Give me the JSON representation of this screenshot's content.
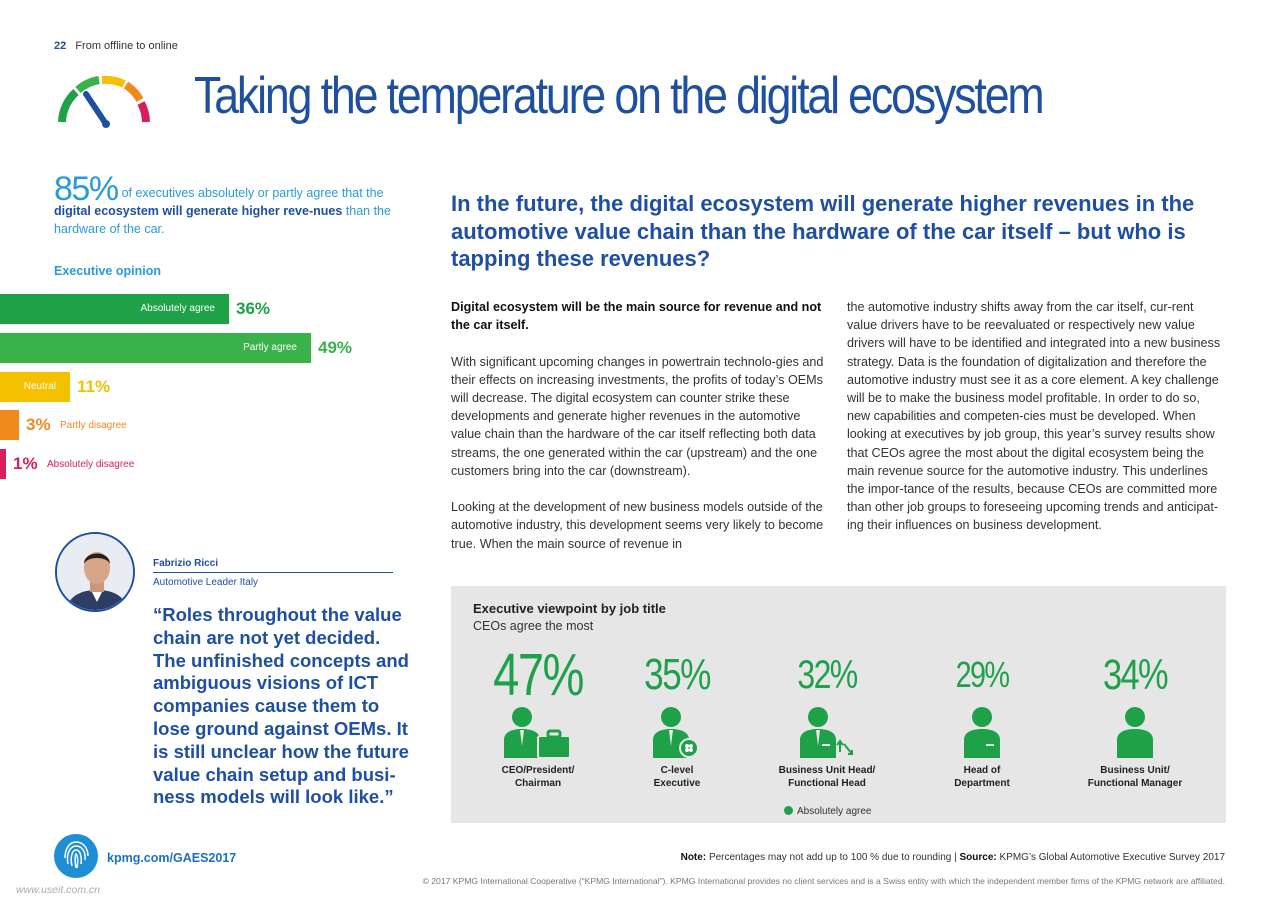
{
  "header": {
    "page_number": "22",
    "section": "From offline to online"
  },
  "title": "Taking the temperature on the digital ecosystem",
  "intro": {
    "big_percent": "85%",
    "text_a": "of executives absolutely or partly agree that the ",
    "text_bold": "digital ecosystem will generate higher reve-nues",
    "text_b": " than the hardware of the car."
  },
  "executive_opinion": {
    "label": "Executive opinion",
    "items": [
      {
        "label": "Absolutely agree",
        "percent": "36%",
        "value": 36,
        "color": "#1fa14a"
      },
      {
        "label": "Partly agree",
        "percent": "49%",
        "value": 49,
        "color": "#38b249"
      },
      {
        "label": "Neutral",
        "percent": "11%",
        "value": 11,
        "color": "#f5c000"
      },
      {
        "label": "Partly disagree",
        "percent": "3%",
        "value": 3,
        "color": "#f08a1c"
      },
      {
        "label": "Absolutely disagree",
        "percent": "1%",
        "value": 1,
        "color": "#d81e5b"
      }
    ]
  },
  "person": {
    "name": "Fabrizio Ricci",
    "role": "Automotive Leader Italy",
    "quote": "“Roles throughout the value chain are not yet decided. The unfinished concepts and ambiguous visions of ICT companies cause them to lose ground against OEMs. It is still unclear how the future value chain setup and busi-ness models will look like.”"
  },
  "headline": "In the future, the digital ecosystem will generate higher revenues in the automotive value chain than the hardware of the car itself – but who is tapping these revenues?",
  "body": {
    "lead": "Digital ecosystem will be the main source for revenue and not the car itself.",
    "p1": "With significant upcoming changes in powertrain technolo-gies and their effects on increasing investments, the profits of today’s OEMs will decrease. The digital ecosystem can counter strike these developments and generate higher revenues in the automotive value chain than the hardware of the car itself reflecting both data streams, the one generated within the car (upstream) and the one customers bring into the car (downstream).",
    "p2": "Looking at the development of new business models outside of the automotive industry, this development seems very likely to become true. When the main source of revenue in",
    "p3": "the automotive industry shifts away from the car itself, cur-rent value drivers have to be reevaluated or respectively new value drivers will have to be identified and integrated into a new business strategy. Data is the foundation of digitalization and therefore the automotive industry must see it as a core element. A key challenge will be to make the business model profitable. In order to do so, new capabilities and competen-cies must be developed. When looking at executives by job group, this year’s survey results show that CEOs agree the most about the digital ecosystem being the main revenue source for the automotive industry. This underlines the impor-tance of the results, because CEOs are committed more than other job groups to foreseeing upcoming trends and anticipat-ing their influences on business development."
  },
  "viewpoint": {
    "title": "Executive viewpoint by job title",
    "subtitle": "CEOs agree the most",
    "stats": [
      {
        "percent": "47%",
        "value": 47,
        "line1": "CEO/President/",
        "line2": "Chairman",
        "icon": "person-briefcase-icon"
      },
      {
        "percent": "35%",
        "value": 35,
        "line1": "C-level",
        "line2": "Executive",
        "icon": "person-clover-icon"
      },
      {
        "percent": "32%",
        "value": 32,
        "line1": "Business Unit Head/",
        "line2": "Functional Head",
        "icon": "person-arrows-icon"
      },
      {
        "percent": "29%",
        "value": 29,
        "line1": "Head of",
        "line2": "Department",
        "icon": "person-icon"
      },
      {
        "percent": "34%",
        "value": 34,
        "line1": "Business Unit/",
        "line2": "Functional Manager",
        "icon": "person-icon"
      }
    ],
    "legend": "Absolutely agree",
    "accent": "#1fa14a"
  },
  "footer": {
    "url": "kpmg.com/GAES2017",
    "note_label": "Note:",
    "note_text": "Percentages may not add up to 100 % due to rounding |",
    "source_label": "Source:",
    "source_text": "KPMG’s Global Automotive Executive Survey 2017",
    "copyright": "© 2017 KPMG International Cooperative (“KPMG International”). KPMG International provides no client services and is a Swiss entity with which the independent member firms of the KPMG network are affiliated.",
    "watermark": "www.useit.com.cn"
  }
}
